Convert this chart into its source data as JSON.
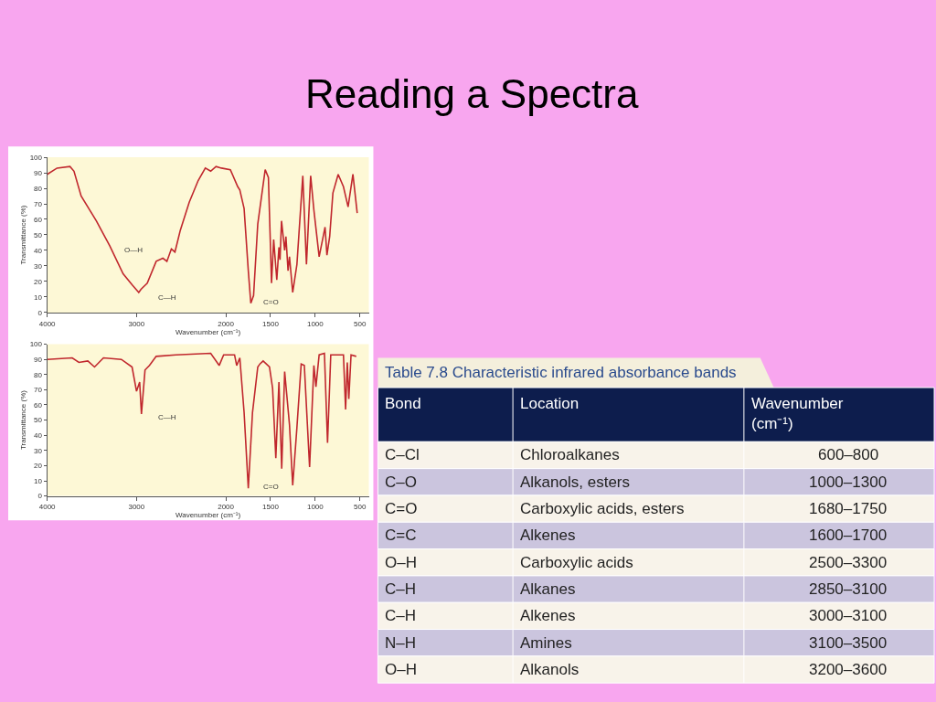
{
  "chart_data": [
    {
      "type": "line",
      "title": "Reading a Spectra",
      "xlabel": "Wavenumber (cm⁻¹)",
      "ylabel": "Transmittance (%)",
      "xlim": [
        4000,
        400
      ],
      "xticks": [
        4000,
        3000,
        2000,
        1500,
        1000,
        500
      ],
      "ylim": [
        0,
        100
      ],
      "yticks": [
        0,
        10,
        20,
        30,
        40,
        50,
        60,
        70,
        80,
        90,
        100
      ],
      "line_style": "solid",
      "series": [
        {
          "color": "#c0272d",
          "x": [
            4000,
            3890,
            3745,
            3700,
            3620,
            3450,
            3300,
            3150,
            3050,
            2975,
            2950,
            2880,
            2780,
            2705,
            2660,
            2610,
            2570,
            2510,
            2410,
            2310,
            2230,
            2170,
            2110,
            2050,
            1950,
            1867,
            1844,
            1796,
            1749,
            1721,
            1690,
            1643,
            1560,
            1524,
            1489,
            1465,
            1430,
            1406,
            1394,
            1377,
            1342,
            1328,
            1304,
            1288,
            1252,
            1205,
            1139,
            1098,
            1051,
            1015,
            956,
            890,
            869,
            838,
            802,
            743,
            684,
            632,
            578,
            530
          ],
          "values": [
            89,
            93,
            94,
            91,
            75,
            59,
            43,
            25,
            18,
            13,
            15,
            19,
            33,
            35,
            33,
            41,
            39,
            53,
            71,
            85,
            93,
            91,
            94,
            93,
            92,
            81,
            79,
            67,
            27,
            6,
            11,
            57,
            92,
            87,
            19,
            47,
            21,
            42,
            34,
            59,
            40,
            49,
            27,
            36,
            13,
            31,
            88,
            31,
            88,
            66,
            36,
            55,
            37,
            49,
            77,
            89,
            81,
            68,
            89,
            64
          ]
        }
      ],
      "annotations": [
        "O—H",
        "C—H",
        "C=O"
      ]
    },
    {
      "type": "line",
      "xlabel": "Wavenumber (cm⁻¹)",
      "ylabel": "Transmittance (%)",
      "xlim": [
        4000,
        400
      ],
      "xticks": [
        4000,
        3000,
        2000,
        1500,
        1000,
        500
      ],
      "ylim": [
        0,
        100
      ],
      "yticks": [
        0,
        10,
        20,
        30,
        40,
        50,
        60,
        70,
        80,
        90,
        100
      ],
      "line_style": "solid",
      "series": [
        {
          "color": "#c0272d",
          "x": [
            4000,
            3720,
            3645,
            3545,
            3470,
            3370,
            3170,
            3050,
            3000,
            2965,
            2945,
            2905,
            2855,
            2780,
            2560,
            2170,
            2075,
            2025,
            1903,
            1879,
            1844,
            1796,
            1749,
            1702,
            1643,
            1619,
            1583,
            1512,
            1477,
            1441,
            1406,
            1375,
            1342,
            1288,
            1252,
            1205,
            1157,
            1122,
            1063,
            1015,
            992,
            956,
            897,
            862,
            826,
            684,
            660,
            641,
            624,
            599,
            541
          ],
          "values": [
            90,
            91,
            88,
            89,
            85,
            91,
            90,
            85,
            69,
            75,
            54,
            83,
            86,
            92,
            93,
            94,
            86,
            93,
            93,
            86,
            91,
            55,
            5,
            55,
            85,
            87,
            89,
            85,
            71,
            25,
            75,
            18,
            82,
            47,
            7,
            45,
            87,
            86,
            19,
            86,
            72,
            93,
            94,
            35,
            93,
            93,
            57,
            88,
            64,
            93,
            92
          ]
        }
      ],
      "annotations": [
        "C—H",
        "C=O"
      ]
    },
    {
      "type": "other",
      "title": "Table 7.8 Characteristic infrared absorbance bands",
      "annotations": [
        "Bond",
        "Location",
        "Wavenumber\n(cm⁻¹)",
        "C–Cl",
        "Chloroalkanes",
        "600–800",
        "C–O",
        "Alkanols, esters",
        "1000–1300",
        "C=O",
        "Carboxylic acids, esters",
        "1680–1750",
        "C=C",
        "Alkenes",
        "1600–1700",
        "O–H",
        "Carboxylic acids",
        "2500–3300",
        "C–H",
        "Alkanes",
        "2850–3100",
        "C–H",
        "Alkenes",
        "3000–3100",
        "N–H",
        "Amines",
        "3100–3500",
        "O–H",
        "Alkanols",
        "3200–3600"
      ]
    }
  ]
}
